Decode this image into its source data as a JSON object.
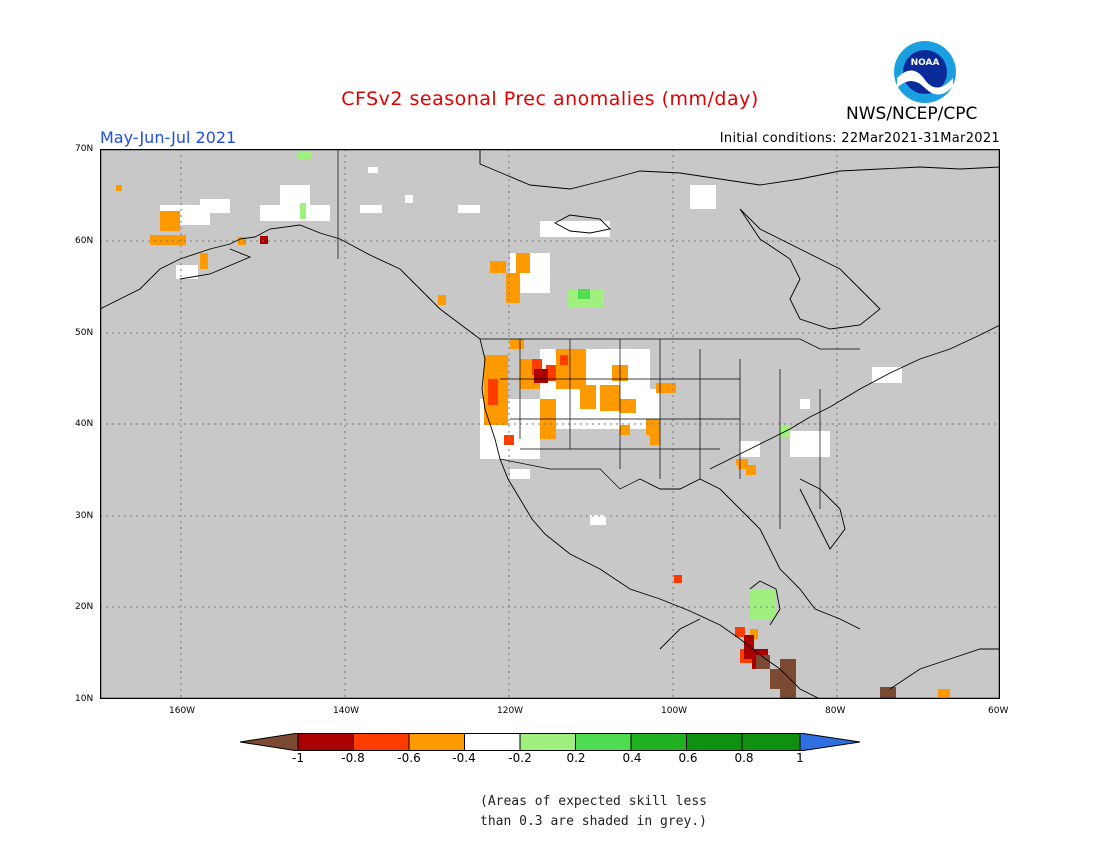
{
  "title": "CFSv2 seasonal Prec anomalies (mm/day)",
  "period": "May-Jun-Jul 2021",
  "initial_conditions": "Initial conditions: 22Mar2021-31Mar2021",
  "agency": "NWS/NCEP/CPC",
  "logo_text": "NOAA",
  "lat_labels": [
    "70N",
    "60N",
    "50N",
    "40N",
    "30N",
    "20N",
    "10N"
  ],
  "lon_labels": [
    "160W",
    "140W",
    "120W",
    "100W",
    "80W",
    "60W"
  ],
  "colorbar_labels": [
    "-1",
    "-0.8",
    "-0.6",
    "-0.4",
    "-0.2",
    "0.2",
    "0.4",
    "0.6",
    "0.8",
    "1"
  ],
  "note_line1": "(Areas of expected skill less",
  "note_line2": "than 0.3 are shaded in grey.)",
  "colors": {
    "grey_mask": "#c8c8c8",
    "neg_lt_1": "#7a4a32",
    "neg_0.8": "#aa0000",
    "neg_0.6": "#ff3c00",
    "neg_0.4": "#ff9900",
    "neg_0.2": "#ffffff",
    "pos_0.2": "#a0f080",
    "pos_0.4": "#50dc50",
    "pos_0.6": "#20b020",
    "pos_0.8": "#109010",
    "pos_gt_1": "#2f6fe0",
    "title": "#e00000",
    "period": "#1f4fe0"
  }
}
